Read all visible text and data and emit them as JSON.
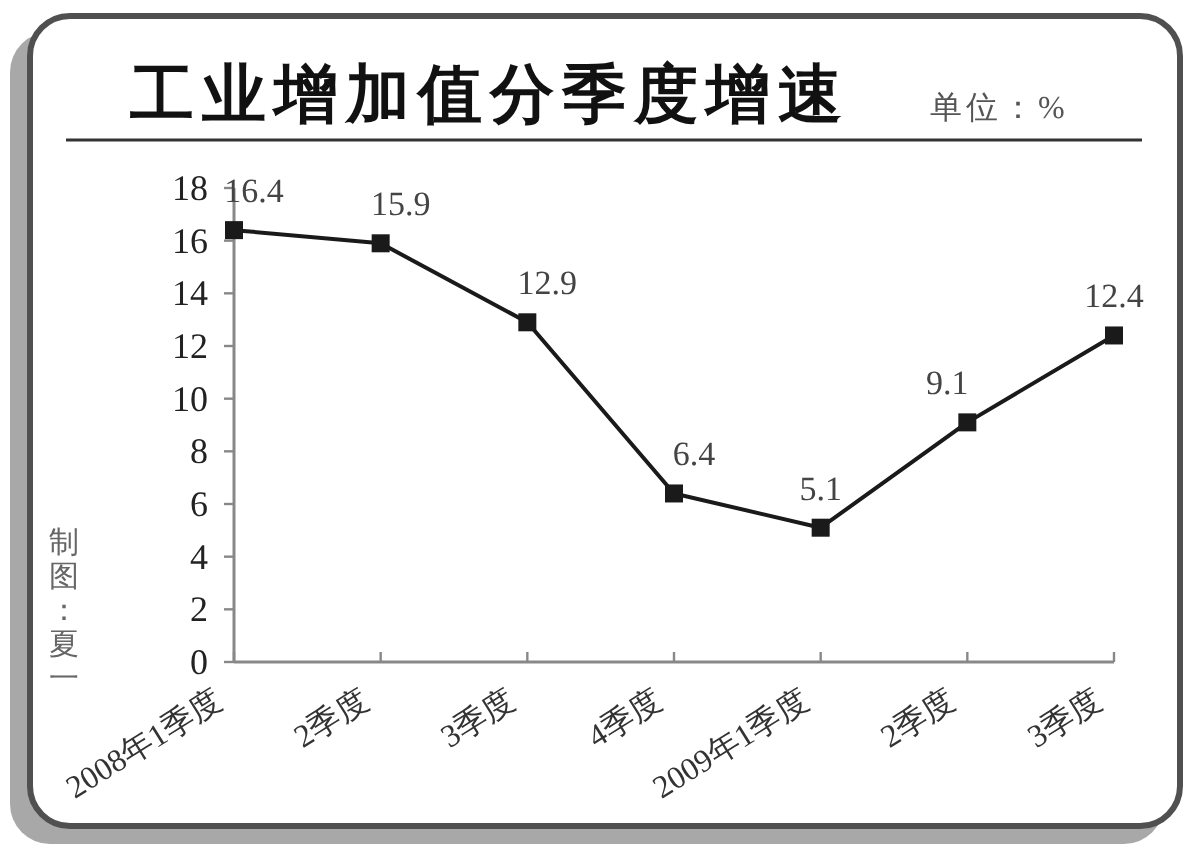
{
  "chart_data": {
    "type": "line",
    "title": "工业增加值分季度增速",
    "subtitle": "单位：%",
    "categories": [
      "2008年1季度",
      "2季度",
      "3季度",
      "4季度",
      "2009年1季度",
      "2季度",
      "3季度"
    ],
    "series": [
      {
        "color": "#1a1a1a",
        "values": [
          16.4,
          15.9,
          12.9,
          6.4,
          5.1,
          9.1,
          12.4
        ]
      }
    ],
    "ylim": [
      0,
      18
    ],
    "yticks": [
      0,
      2,
      4,
      6,
      8,
      10,
      12,
      14,
      16,
      18
    ],
    "marker": "square",
    "data_labels": true,
    "annotations": [
      "制图：夏一"
    ]
  }
}
